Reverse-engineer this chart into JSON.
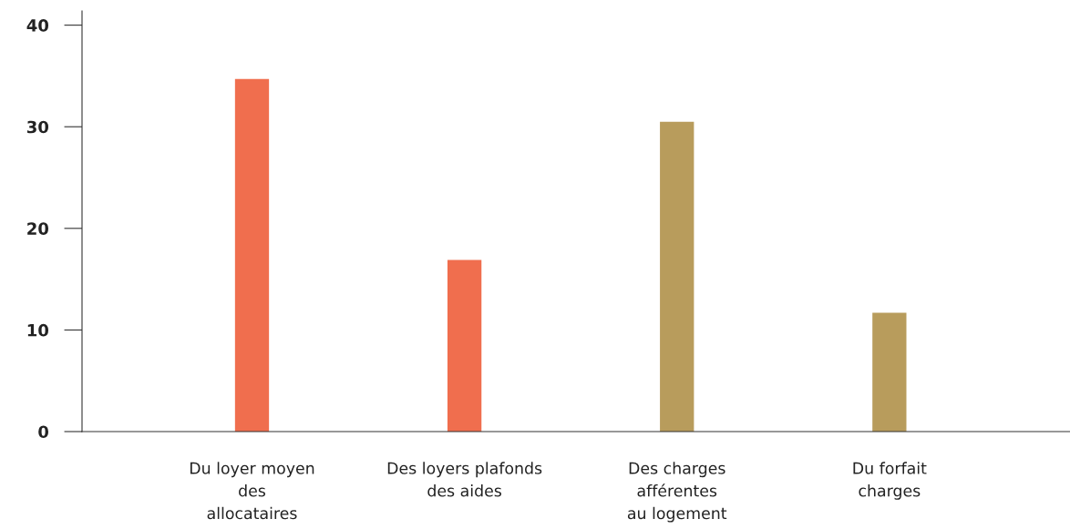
{
  "chart_data": {
    "type": "bar",
    "categories": [
      "Du loyer moyen\ndes\nallocataires",
      "Des loyers plafonds\ndes aides",
      "Des charges\nafférentes\nau logement",
      "Du forfait\ncharges"
    ],
    "values": [
      34.7,
      16.9,
      30.5,
      11.7
    ],
    "colors": [
      "#f06e4e",
      "#f06e4e",
      "#b89c5c",
      "#b89c5c"
    ],
    "ylim": [
      0,
      41.4
    ],
    "yticks": [
      0,
      10,
      20,
      30,
      40
    ],
    "grid": false
  }
}
